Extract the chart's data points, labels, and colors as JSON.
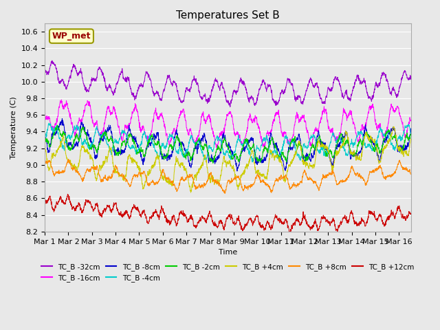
{
  "title": "Temperatures Set B",
  "xlabel": "Time",
  "ylabel": "Temperature (C)",
  "ylim": [
    8.2,
    10.7
  ],
  "xlim_days": 15.5,
  "x_tick_labels": [
    "Mar 1",
    "Mar 2",
    "Mar 3",
    "Mar 4",
    "Mar 5",
    "Mar 6",
    "Mar 7",
    "Mar 8",
    "Mar 9",
    "Mar 10",
    "Mar 11",
    "Mar 12",
    "Mar 13",
    "Mar 14",
    "Mar 15",
    "Mar 16"
  ],
  "annotation_text": "WP_met",
  "annotation_color": "#990000",
  "annotation_bg": "#ffffcc",
  "annotation_border": "#999900",
  "series": [
    {
      "label": "TC_B -32cm",
      "color": "#9900cc"
    },
    {
      "label": "TC_B -16cm",
      "color": "#ff00ff"
    },
    {
      "label": "TC_B -8cm",
      "color": "#0000cc"
    },
    {
      "label": "TC_B -4cm",
      "color": "#00cccc"
    },
    {
      "label": "TC_B -2cm",
      "color": "#00cc00"
    },
    {
      "label": "TC_B +4cm",
      "color": "#cccc00"
    },
    {
      "label": "TC_B +8cm",
      "color": "#ff8800"
    },
    {
      "label": "TC_B +12cm",
      "color": "#cc0000"
    }
  ],
  "bg_color": "#e8e8e8",
  "plot_bg": "#e8e8e8",
  "grid_color": "#ffffff",
  "n_points": 2880
}
